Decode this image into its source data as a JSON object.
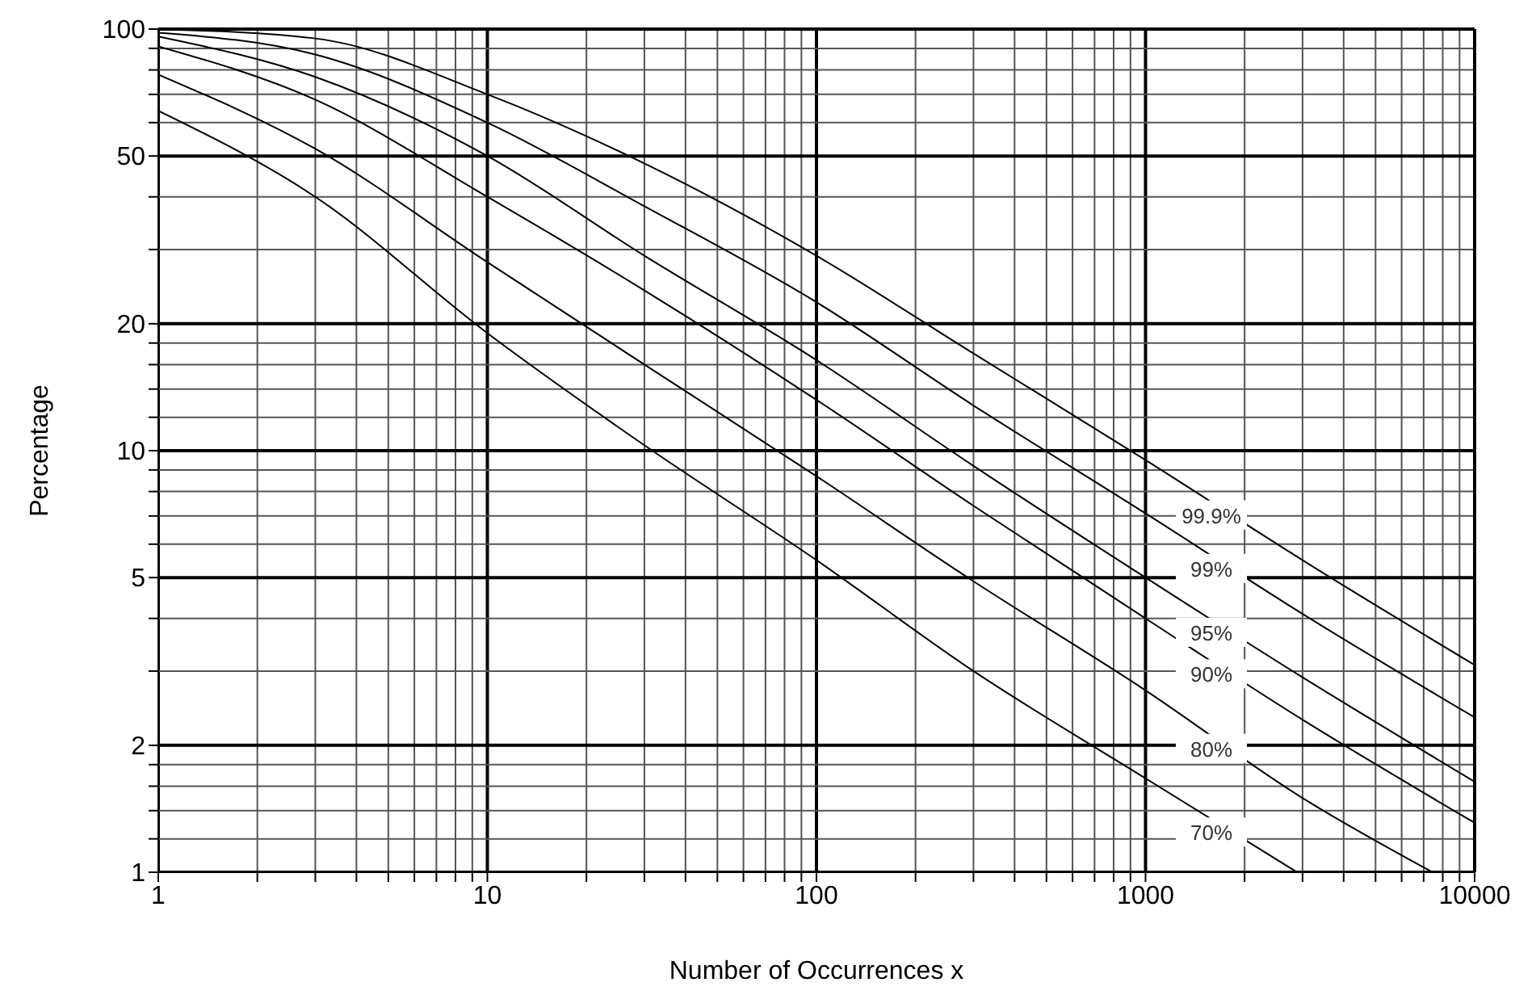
{
  "chart_data": {
    "type": "line",
    "xlabel": "Number of Occurrences x",
    "ylabel": "Percentage",
    "log": "xy",
    "grid": true,
    "marker": "none",
    "line_style": "solid",
    "xlim": [
      1,
      10000
    ],
    "ylim": [
      1,
      100
    ],
    "xticks": [
      1,
      {
        "value": 2,
        "label": null
      },
      {
        "value": 3,
        "label": null
      },
      {
        "value": 4,
        "label": null
      },
      {
        "value": 5,
        "label": null
      },
      {
        "value": 6,
        "label": null
      },
      {
        "value": 7,
        "label": null
      },
      {
        "value": 8,
        "label": null
      },
      {
        "value": 9,
        "label": null
      },
      10,
      {
        "value": 20,
        "label": null
      },
      {
        "value": 30,
        "label": null
      },
      {
        "value": 40,
        "label": null
      },
      {
        "value": 50,
        "label": null
      },
      {
        "value": 60,
        "label": null
      },
      {
        "value": 70,
        "label": null
      },
      {
        "value": 80,
        "label": null
      },
      {
        "value": 90,
        "label": null
      },
      100,
      {
        "value": 200,
        "label": null
      },
      {
        "value": 300,
        "label": null
      },
      {
        "value": 400,
        "label": null
      },
      {
        "value": 500,
        "label": null
      },
      {
        "value": 600,
        "label": null
      },
      {
        "value": 700,
        "label": null
      },
      {
        "value": 800,
        "label": null
      },
      {
        "value": 900,
        "label": null
      },
      1000,
      {
        "value": 2000,
        "label": null
      },
      {
        "value": 3000,
        "label": null
      },
      {
        "value": 4000,
        "label": null
      },
      {
        "value": 5000,
        "label": null
      },
      {
        "value": 6000,
        "label": null
      },
      {
        "value": 7000,
        "label": null
      },
      {
        "value": 8000,
        "label": null
      },
      {
        "value": 9000,
        "label": null
      },
      10000
    ],
    "yticks": [
      1,
      {
        "value": 1.2,
        "label": null
      },
      {
        "value": 1.4,
        "label": null
      },
      {
        "value": 1.6,
        "label": null
      },
      {
        "value": 1.8,
        "label": null
      },
      2,
      {
        "value": 3,
        "label": null
      },
      {
        "value": 4,
        "label": null
      },
      5,
      {
        "value": 6,
        "label": null
      },
      {
        "value": 7,
        "label": null
      },
      {
        "value": 8,
        "label": null
      },
      {
        "value": 9,
        "label": null
      },
      10,
      {
        "value": 12,
        "label": null
      },
      {
        "value": 14,
        "label": null
      },
      {
        "value": 16,
        "label": null
      },
      {
        "value": 18,
        "label": null
      },
      20,
      {
        "value": 30,
        "label": null
      },
      {
        "value": 40,
        "label": null
      },
      50,
      {
        "value": 60,
        "label": null
      },
      {
        "value": 70,
        "label": null
      },
      {
        "value": 80,
        "label": null
      },
      {
        "value": 90,
        "label": null
      },
      100
    ],
    "series": [
      {
        "name": "99.9%",
        "color": "#000000",
        "x": [
          1,
          3,
          10,
          30,
          100,
          300,
          1000,
          3000,
          10000
        ],
        "values": [
          99.9,
          95,
          70,
          48,
          29,
          17,
          9.5,
          5.5,
          3.1
        ]
      },
      {
        "name": "99%",
        "color": "#000000",
        "x": [
          1,
          3,
          10,
          30,
          100,
          300,
          1000,
          3000,
          10000
        ],
        "values": [
          98,
          87,
          60,
          38,
          22.5,
          12.8,
          7.1,
          4.1,
          2.33
        ]
      },
      {
        "name": "95%",
        "color": "#000000",
        "x": [
          1,
          3,
          10,
          30,
          100,
          300,
          1000,
          3000,
          10000
        ],
        "values": [
          96,
          77,
          50,
          29,
          16.4,
          9.2,
          5,
          2.9,
          1.64
        ]
      },
      {
        "name": "90%",
        "color": "#000000",
        "x": [
          1,
          3,
          10,
          30,
          100,
          300,
          1000,
          3000,
          10000
        ],
        "values": [
          91,
          68,
          40,
          24,
          13.2,
          7.4,
          4,
          2.3,
          1.31
        ]
      },
      {
        "name": "80%",
        "color": "#000000",
        "x": [
          1,
          3,
          10,
          30,
          100,
          300,
          1000,
          3000,
          7450
        ],
        "values": [
          78,
          52,
          28,
          16,
          8.7,
          4.9,
          2.7,
          1.5,
          1
        ]
      },
      {
        "name": "70%",
        "color": "#000000",
        "x": [
          1,
          3,
          10,
          30,
          100,
          300,
          1000,
          2890
        ],
        "values": [
          64,
          40,
          19,
          10.3,
          5.5,
          3,
          1.67,
          1
        ]
      }
    ]
  }
}
